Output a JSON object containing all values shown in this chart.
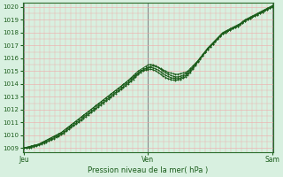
{
  "bg_color": "#d8f0e0",
  "grid_color_minor": "#f0a8a8",
  "grid_color_major_x": "#888888",
  "line_color": "#1a5c1a",
  "marker_color": "#1a5c1a",
  "axis_color": "#2a6c2a",
  "text_color": "#1a5c1a",
  "xlabel_text": "Pression niveau de la mer( hPa )",
  "day_labels": [
    "Jeu",
    "Ven",
    "Sam"
  ],
  "day_positions": [
    0.0,
    0.5,
    1.0
  ],
  "ylim": [
    1008.7,
    1020.3
  ],
  "yticks": [
    1009,
    1010,
    1011,
    1012,
    1013,
    1014,
    1015,
    1016,
    1017,
    1018,
    1019,
    1020
  ],
  "t": [
    0.0,
    0.01,
    0.02,
    0.03,
    0.04,
    0.05,
    0.06,
    0.07,
    0.08,
    0.09,
    0.1,
    0.11,
    0.12,
    0.13,
    0.14,
    0.15,
    0.16,
    0.17,
    0.18,
    0.19,
    0.2,
    0.21,
    0.22,
    0.23,
    0.24,
    0.25,
    0.26,
    0.27,
    0.28,
    0.29,
    0.3,
    0.31,
    0.32,
    0.33,
    0.34,
    0.35,
    0.36,
    0.37,
    0.38,
    0.39,
    0.4,
    0.41,
    0.42,
    0.43,
    0.44,
    0.45,
    0.46,
    0.47,
    0.48,
    0.49,
    0.5,
    0.51,
    0.52,
    0.53,
    0.54,
    0.55,
    0.56,
    0.57,
    0.58,
    0.59,
    0.6,
    0.61,
    0.62,
    0.63,
    0.64,
    0.65,
    0.66,
    0.67,
    0.68,
    0.69,
    0.7,
    0.71,
    0.72,
    0.73,
    0.74,
    0.75,
    0.76,
    0.77,
    0.78,
    0.79,
    0.8,
    0.81,
    0.82,
    0.83,
    0.84,
    0.85,
    0.86,
    0.87,
    0.88,
    0.89,
    0.9,
    0.91,
    0.92,
    0.93,
    0.94,
    0.95,
    0.96,
    0.97,
    0.98,
    0.99,
    1.0
  ],
  "line1": [
    1009.0,
    1009.05,
    1009.1,
    1009.15,
    1009.2,
    1009.25,
    1009.3,
    1009.4,
    1009.5,
    1009.6,
    1009.7,
    1009.8,
    1009.9,
    1010.0,
    1010.1,
    1010.2,
    1010.35,
    1010.5,
    1010.65,
    1010.8,
    1010.95,
    1011.1,
    1011.25,
    1011.4,
    1011.55,
    1011.7,
    1011.85,
    1012.0,
    1012.15,
    1012.3,
    1012.45,
    1012.6,
    1012.75,
    1012.9,
    1013.05,
    1013.2,
    1013.35,
    1013.5,
    1013.65,
    1013.8,
    1013.95,
    1014.1,
    1014.25,
    1014.4,
    1014.55,
    1014.7,
    1014.85,
    1015.0,
    1015.1,
    1015.2,
    1015.3,
    1015.35,
    1015.4,
    1015.35,
    1015.3,
    1015.2,
    1015.1,
    1015.0,
    1014.9,
    1014.85,
    1014.8,
    1014.75,
    1014.75,
    1014.8,
    1014.85,
    1014.9,
    1015.0,
    1015.2,
    1015.4,
    1015.6,
    1015.8,
    1016.0,
    1016.2,
    1016.45,
    1016.7,
    1016.9,
    1017.1,
    1017.3,
    1017.5,
    1017.7,
    1017.9,
    1018.0,
    1018.1,
    1018.2,
    1018.3,
    1018.4,
    1018.5,
    1018.6,
    1018.75,
    1018.9,
    1019.0,
    1019.1,
    1019.2,
    1019.3,
    1019.4,
    1019.5,
    1019.6,
    1019.7,
    1019.8,
    1019.9,
    1020.0
  ],
  "line2": [
    1009.0,
    1009.05,
    1009.1,
    1009.15,
    1009.2,
    1009.25,
    1009.3,
    1009.4,
    1009.5,
    1009.6,
    1009.7,
    1009.8,
    1009.9,
    1010.0,
    1010.1,
    1010.2,
    1010.35,
    1010.5,
    1010.65,
    1010.8,
    1010.95,
    1011.1,
    1011.25,
    1011.4,
    1011.55,
    1011.7,
    1011.85,
    1012.0,
    1012.15,
    1012.3,
    1012.45,
    1012.6,
    1012.75,
    1012.9,
    1013.05,
    1013.2,
    1013.35,
    1013.5,
    1013.65,
    1013.8,
    1013.95,
    1014.1,
    1014.28,
    1014.46,
    1014.64,
    1014.82,
    1015.0,
    1015.12,
    1015.24,
    1015.36,
    1015.48,
    1015.52,
    1015.48,
    1015.4,
    1015.28,
    1015.15,
    1015.0,
    1014.88,
    1014.76,
    1014.68,
    1014.6,
    1014.55,
    1014.55,
    1014.6,
    1014.68,
    1014.78,
    1014.9,
    1015.1,
    1015.3,
    1015.55,
    1015.8,
    1016.05,
    1016.3,
    1016.55,
    1016.8,
    1017.0,
    1017.2,
    1017.4,
    1017.6,
    1017.8,
    1018.0,
    1018.1,
    1018.2,
    1018.3,
    1018.4,
    1018.5,
    1018.6,
    1018.7,
    1018.85,
    1019.0,
    1019.1,
    1019.2,
    1019.3,
    1019.4,
    1019.5,
    1019.6,
    1019.7,
    1019.8,
    1019.9,
    1020.0,
    1020.1
  ],
  "line3": [
    1009.0,
    1009.0,
    1009.05,
    1009.1,
    1009.15,
    1009.2,
    1009.28,
    1009.36,
    1009.44,
    1009.52,
    1009.6,
    1009.7,
    1009.8,
    1009.9,
    1010.0,
    1010.1,
    1010.22,
    1010.38,
    1010.54,
    1010.68,
    1010.82,
    1010.96,
    1011.1,
    1011.25,
    1011.4,
    1011.55,
    1011.7,
    1011.85,
    1012.0,
    1012.15,
    1012.3,
    1012.45,
    1012.6,
    1012.75,
    1012.9,
    1013.05,
    1013.2,
    1013.35,
    1013.5,
    1013.65,
    1013.8,
    1013.95,
    1014.1,
    1014.28,
    1014.46,
    1014.64,
    1014.82,
    1015.0,
    1015.1,
    1015.18,
    1015.25,
    1015.28,
    1015.25,
    1015.18,
    1015.08,
    1014.95,
    1014.8,
    1014.68,
    1014.58,
    1014.5,
    1014.45,
    1014.42,
    1014.42,
    1014.46,
    1014.55,
    1014.65,
    1014.78,
    1015.0,
    1015.22,
    1015.48,
    1015.75,
    1016.0,
    1016.25,
    1016.5,
    1016.75,
    1016.95,
    1017.15,
    1017.35,
    1017.55,
    1017.75,
    1017.95,
    1018.05,
    1018.15,
    1018.25,
    1018.35,
    1018.45,
    1018.55,
    1018.65,
    1018.8,
    1018.95,
    1019.05,
    1019.15,
    1019.25,
    1019.35,
    1019.45,
    1019.55,
    1019.65,
    1019.75,
    1019.85,
    1019.95,
    1020.05
  ],
  "line4": [
    1009.0,
    1009.0,
    1009.0,
    1009.05,
    1009.1,
    1009.15,
    1009.22,
    1009.3,
    1009.38,
    1009.46,
    1009.54,
    1009.62,
    1009.72,
    1009.82,
    1009.92,
    1010.02,
    1010.15,
    1010.3,
    1010.45,
    1010.6,
    1010.72,
    1010.86,
    1011.0,
    1011.15,
    1011.3,
    1011.45,
    1011.6,
    1011.75,
    1011.9,
    1012.05,
    1012.2,
    1012.35,
    1012.5,
    1012.65,
    1012.8,
    1012.95,
    1013.1,
    1013.25,
    1013.4,
    1013.55,
    1013.7,
    1013.85,
    1014.0,
    1014.18,
    1014.36,
    1014.54,
    1014.72,
    1014.9,
    1015.0,
    1015.08,
    1015.12,
    1015.15,
    1015.1,
    1015.02,
    1014.9,
    1014.76,
    1014.62,
    1014.5,
    1014.42,
    1014.35,
    1014.3,
    1014.28,
    1014.3,
    1014.35,
    1014.44,
    1014.55,
    1014.68,
    1014.9,
    1015.15,
    1015.42,
    1015.7,
    1015.95,
    1016.2,
    1016.45,
    1016.7,
    1016.9,
    1017.1,
    1017.3,
    1017.5,
    1017.7,
    1017.9,
    1018.0,
    1018.1,
    1018.2,
    1018.3,
    1018.4,
    1018.5,
    1018.6,
    1018.75,
    1018.9,
    1019.0,
    1019.1,
    1019.2,
    1019.3,
    1019.4,
    1019.5,
    1019.6,
    1019.7,
    1019.8,
    1019.9,
    1020.0
  ]
}
